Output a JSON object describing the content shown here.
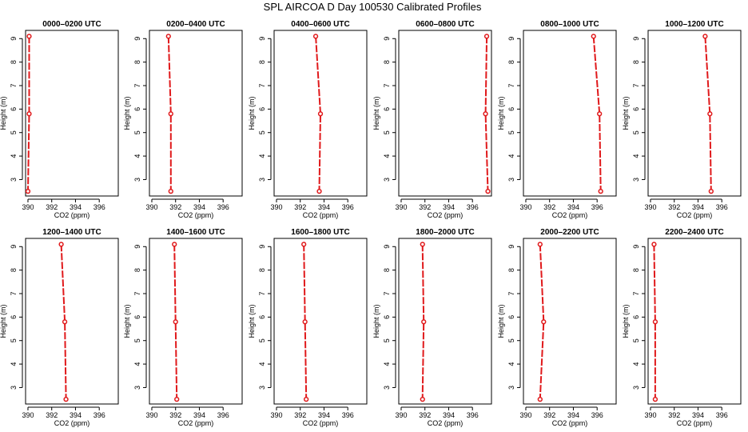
{
  "figure_title": "SPL AIRCOA D  Day 100530  Calibrated Profiles",
  "colors": {
    "series": "#e0191b"
  },
  "chart_data": [
    {
      "type": "line",
      "title": "0000–0200 UTC",
      "xlabel": "CO2 (ppm)",
      "ylabel": "Height (m)",
      "xlim": [
        389.8,
        397.6
      ],
      "ylim": [
        2.3,
        9.35
      ],
      "xticks": [
        390,
        392,
        394,
        396
      ],
      "yticks": [
        3,
        4,
        5,
        6,
        7,
        8,
        9
      ],
      "grid": false,
      "series": [
        {
          "points": [
            {
              "x": 390.1,
              "y": 9.1
            },
            {
              "x": 390.1,
              "y": 5.8
            },
            {
              "x": 390.0,
              "y": 2.5
            }
          ]
        }
      ]
    },
    {
      "type": "line",
      "title": "0200–0400 UTC",
      "xlabel": "CO2 (ppm)",
      "ylabel": "Height (m)",
      "xlim": [
        389.8,
        397.6
      ],
      "ylim": [
        2.3,
        9.35
      ],
      "xticks": [
        390,
        392,
        394,
        396
      ],
      "yticks": [
        3,
        4,
        5,
        6,
        7,
        8,
        9
      ],
      "grid": false,
      "series": [
        {
          "points": [
            {
              "x": 391.4,
              "y": 9.1
            },
            {
              "x": 391.6,
              "y": 5.8
            },
            {
              "x": 391.6,
              "y": 2.5
            }
          ]
        }
      ]
    },
    {
      "type": "line",
      "title": "0400–0600 UTC",
      "xlabel": "CO2 (ppm)",
      "ylabel": "Height (m)",
      "xlim": [
        389.8,
        397.6
      ],
      "ylim": [
        2.3,
        9.35
      ],
      "xticks": [
        390,
        392,
        394,
        396
      ],
      "yticks": [
        3,
        4,
        5,
        6,
        7,
        8,
        9
      ],
      "grid": false,
      "series": [
        {
          "points": [
            {
              "x": 393.3,
              "y": 9.1
            },
            {
              "x": 393.7,
              "y": 5.8
            },
            {
              "x": 393.6,
              "y": 2.5
            }
          ]
        }
      ]
    },
    {
      "type": "line",
      "title": "0600–0800 UTC",
      "xlabel": "CO2 (ppm)",
      "ylabel": "Height (m)",
      "xlim": [
        389.8,
        397.6
      ],
      "ylim": [
        2.3,
        9.35
      ],
      "xticks": [
        390,
        392,
        394,
        396
      ],
      "yticks": [
        3,
        4,
        5,
        6,
        7,
        8,
        9
      ],
      "grid": false,
      "series": [
        {
          "points": [
            {
              "x": 397.2,
              "y": 9.1
            },
            {
              "x": 397.1,
              "y": 5.8
            },
            {
              "x": 397.3,
              "y": 2.5
            }
          ]
        }
      ]
    },
    {
      "type": "line",
      "title": "0800–1000 UTC",
      "xlabel": "CO2 (ppm)",
      "ylabel": "Height (m)",
      "xlim": [
        389.8,
        397.6
      ],
      "ylim": [
        2.3,
        9.35
      ],
      "xticks": [
        390,
        392,
        394,
        396
      ],
      "yticks": [
        3,
        4,
        5,
        6,
        7,
        8,
        9
      ],
      "grid": false,
      "series": [
        {
          "points": [
            {
              "x": 395.7,
              "y": 9.1
            },
            {
              "x": 396.2,
              "y": 5.8
            },
            {
              "x": 396.3,
              "y": 2.5
            }
          ]
        }
      ]
    },
    {
      "type": "line",
      "title": "1000–1200 UTC",
      "xlabel": "CO2 (ppm)",
      "ylabel": "Height (m)",
      "xlim": [
        389.8,
        397.6
      ],
      "ylim": [
        2.3,
        9.35
      ],
      "xticks": [
        390,
        392,
        394,
        396
      ],
      "yticks": [
        3,
        4,
        5,
        6,
        7,
        8,
        9
      ],
      "grid": false,
      "series": [
        {
          "points": [
            {
              "x": 394.6,
              "y": 9.1
            },
            {
              "x": 395.0,
              "y": 5.8
            },
            {
              "x": 395.1,
              "y": 2.5
            }
          ]
        }
      ]
    },
    {
      "type": "line",
      "title": "1200–1400 UTC",
      "xlabel": "CO2 (ppm)",
      "ylabel": "Height (m)",
      "xlim": [
        389.8,
        397.6
      ],
      "ylim": [
        2.3,
        9.35
      ],
      "xticks": [
        390,
        392,
        394,
        396
      ],
      "yticks": [
        3,
        4,
        5,
        6,
        7,
        8,
        9
      ],
      "grid": false,
      "series": [
        {
          "points": [
            {
              "x": 392.8,
              "y": 9.1
            },
            {
              "x": 393.1,
              "y": 5.8
            },
            {
              "x": 393.2,
              "y": 2.5
            }
          ]
        }
      ]
    },
    {
      "type": "line",
      "title": "1400–1600 UTC",
      "xlabel": "CO2 (ppm)",
      "ylabel": "Height (m)",
      "xlim": [
        389.8,
        397.6
      ],
      "ylim": [
        2.3,
        9.35
      ],
      "xticks": [
        390,
        392,
        394,
        396
      ],
      "yticks": [
        3,
        4,
        5,
        6,
        7,
        8,
        9
      ],
      "grid": false,
      "series": [
        {
          "points": [
            {
              "x": 391.9,
              "y": 9.1
            },
            {
              "x": 392.0,
              "y": 5.8
            },
            {
              "x": 392.1,
              "y": 2.5
            }
          ]
        }
      ]
    },
    {
      "type": "line",
      "title": "1600–1800 UTC",
      "xlabel": "CO2 (ppm)",
      "ylabel": "Height (m)",
      "xlim": [
        389.8,
        397.6
      ],
      "ylim": [
        2.3,
        9.35
      ],
      "xticks": [
        390,
        392,
        394,
        396
      ],
      "yticks": [
        3,
        4,
        5,
        6,
        7,
        8,
        9
      ],
      "grid": false,
      "series": [
        {
          "points": [
            {
              "x": 392.3,
              "y": 9.1
            },
            {
              "x": 392.4,
              "y": 5.8
            },
            {
              "x": 392.5,
              "y": 2.5
            }
          ]
        }
      ]
    },
    {
      "type": "line",
      "title": "1800–2000 UTC",
      "xlabel": "CO2 (ppm)",
      "ylabel": "Height (m)",
      "xlim": [
        389.8,
        397.6
      ],
      "ylim": [
        2.3,
        9.35
      ],
      "xticks": [
        390,
        392,
        394,
        396
      ],
      "yticks": [
        3,
        4,
        5,
        6,
        7,
        8,
        9
      ],
      "grid": false,
      "series": [
        {
          "points": [
            {
              "x": 391.8,
              "y": 9.1
            },
            {
              "x": 391.9,
              "y": 5.8
            },
            {
              "x": 391.8,
              "y": 2.5
            }
          ]
        }
      ]
    },
    {
      "type": "line",
      "title": "2000–2200 UTC",
      "xlabel": "CO2 (ppm)",
      "ylabel": "Height (m)",
      "xlim": [
        389.8,
        397.6
      ],
      "ylim": [
        2.3,
        9.35
      ],
      "xticks": [
        390,
        392,
        394,
        396
      ],
      "yticks": [
        3,
        4,
        5,
        6,
        7,
        8,
        9
      ],
      "grid": false,
      "series": [
        {
          "points": [
            {
              "x": 391.2,
              "y": 9.1
            },
            {
              "x": 391.5,
              "y": 5.8
            },
            {
              "x": 391.2,
              "y": 2.5
            }
          ]
        }
      ]
    },
    {
      "type": "line",
      "title": "2200–2400 UTC",
      "xlabel": "CO2 (ppm)",
      "ylabel": "Height (m)",
      "xlim": [
        389.8,
        397.6
      ],
      "ylim": [
        2.3,
        9.35
      ],
      "xticks": [
        390,
        392,
        394,
        396
      ],
      "yticks": [
        3,
        4,
        5,
        6,
        7,
        8,
        9
      ],
      "grid": false,
      "series": [
        {
          "points": [
            {
              "x": 390.3,
              "y": 9.1
            },
            {
              "x": 390.4,
              "y": 5.8
            },
            {
              "x": 390.4,
              "y": 2.5
            }
          ]
        }
      ]
    }
  ]
}
